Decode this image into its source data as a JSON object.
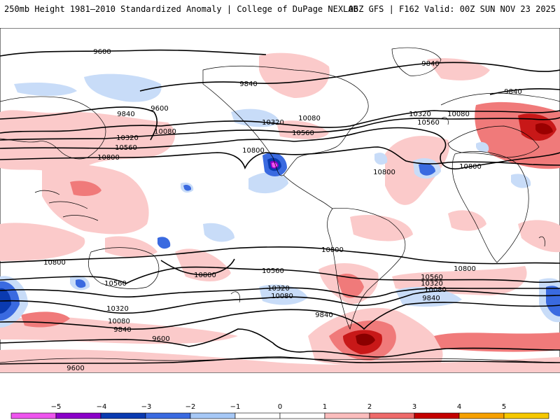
{
  "header": {
    "left": "250mb Height 1981–2010 Standardized Anomaly | College of DuPage NEXLAB",
    "right": "06Z GFS | F162 Valid: 00Z SUN NOV 23 2025"
  },
  "contours": {
    "c9600_top": "9600",
    "c9840_top": "9840",
    "c9840_ne": "9840",
    "c9840_asia": "9840",
    "c9840_e": "9840",
    "c9600_ak": "9600",
    "c10320_na": "10320",
    "c10560_na": "10560",
    "c10080_na": "10080",
    "c10320_atl": "10320",
    "c10080_atl": "10080",
    "c10560_atl": "10560",
    "c10800_eu": "10800",
    "c10080_w": "10080",
    "c10320_w": "10320",
    "c10560_w": "10560",
    "c10800_w": "10800",
    "c10800_pac": "10800",
    "c10800_atlc": "10800",
    "c10800_sp": "10800",
    "c10800_sw": "10800",
    "c10800_swp": "10800",
    "c10800_sa": "10800",
    "c10560_s": "10560",
    "c10560_sw": "10560",
    "c10320_s": "10320",
    "c10080_s": "10080",
    "c10320_sw": "10320",
    "c10080_sw": "10080",
    "c9840_s": "9840",
    "c9840_sw": "9840",
    "c9600_s": "9600",
    "c9600_sb": "9600",
    "c10560_se": "10560",
    "c10320_se": "10320",
    "c10080_se": "10080",
    "c9840_se": "9840",
    "c10800_se": "10800"
  },
  "legend": {
    "ticks": [
      "−5",
      "−4",
      "−3",
      "−2",
      "−1",
      "0",
      "1",
      "2",
      "3",
      "4",
      "5"
    ],
    "colors": [
      "#ee55ee",
      "#8a00c8",
      "#0a3ab0",
      "#3a6ae0",
      "#a6c8f6",
      "#ffffff",
      "#ffffff",
      "#fbbdbd",
      "#ee6a6a",
      "#c40000",
      "#f6a000",
      "#f6c800"
    ]
  }
}
